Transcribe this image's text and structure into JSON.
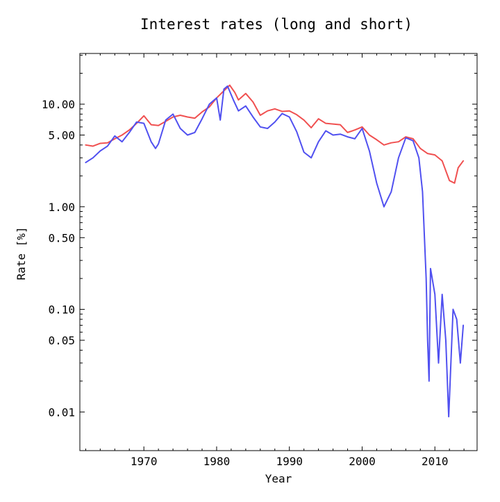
{
  "chart_data": {
    "type": "line",
    "title": "Interest rates (long and short)",
    "xlabel": "Year",
    "ylabel": "Rate [%]",
    "xlim": [
      1961.2,
      2015.8
    ],
    "ylim": [
      0.0042,
      31.2
    ],
    "yscale": "log",
    "grid": false,
    "legend": "none",
    "x_ticks": [
      1970,
      1980,
      1990,
      2000,
      2010
    ],
    "x_tick_labels": [
      "1970",
      "1980",
      "1990",
      "2000",
      "2010"
    ],
    "y_ticks": [
      10,
      5,
      1,
      0.5,
      0.1,
      0.05,
      0.01
    ],
    "y_tick_labels": [
      "10.00",
      "5.00",
      "1.00",
      "0.50",
      "0.10",
      "0.05",
      "0.01"
    ],
    "series": [
      {
        "color": "#f05050",
        "points": [
          [
            1962.0,
            4.0
          ],
          [
            1963.0,
            3.9
          ],
          [
            1964.0,
            4.15
          ],
          [
            1965.0,
            4.2
          ],
          [
            1966.0,
            4.6
          ],
          [
            1967.0,
            5.0
          ],
          [
            1968.0,
            5.6
          ],
          [
            1969.0,
            6.5
          ],
          [
            1970.0,
            7.7
          ],
          [
            1971.0,
            6.3
          ],
          [
            1972.0,
            6.2
          ],
          [
            1973.0,
            6.8
          ],
          [
            1974.0,
            7.5
          ],
          [
            1975.0,
            7.8
          ],
          [
            1976.0,
            7.5
          ],
          [
            1977.0,
            7.3
          ],
          [
            1978.0,
            8.4
          ],
          [
            1979.0,
            9.4
          ],
          [
            1980.0,
            11.5
          ],
          [
            1981.0,
            13.5
          ],
          [
            1981.8,
            15.3
          ],
          [
            1982.5,
            13.0
          ],
          [
            1983.0,
            11.0
          ],
          [
            1984.0,
            12.7
          ],
          [
            1985.0,
            10.5
          ],
          [
            1986.0,
            7.8
          ],
          [
            1987.0,
            8.6
          ],
          [
            1988.0,
            9.0
          ],
          [
            1989.0,
            8.5
          ],
          [
            1990.0,
            8.6
          ],
          [
            1991.0,
            7.9
          ],
          [
            1992.0,
            7.0
          ],
          [
            1993.0,
            5.9
          ],
          [
            1994.0,
            7.2
          ],
          [
            1995.0,
            6.5
          ],
          [
            1996.0,
            6.4
          ],
          [
            1997.0,
            6.3
          ],
          [
            1998.0,
            5.3
          ],
          [
            1999.0,
            5.6
          ],
          [
            2000.0,
            6.0
          ],
          [
            2001.0,
            5.0
          ],
          [
            2002.0,
            4.5
          ],
          [
            2003.0,
            4.0
          ],
          [
            2004.0,
            4.2
          ],
          [
            2005.0,
            4.3
          ],
          [
            2006.0,
            4.8
          ],
          [
            2007.0,
            4.6
          ],
          [
            2008.0,
            3.7
          ],
          [
            2009.0,
            3.3
          ],
          [
            2010.0,
            3.2
          ],
          [
            2011.0,
            2.8
          ],
          [
            2012.0,
            1.8
          ],
          [
            2012.7,
            1.7
          ],
          [
            2013.2,
            2.4
          ],
          [
            2013.9,
            2.8
          ]
        ]
      },
      {
        "color": "#5050f0",
        "points": [
          [
            1962.0,
            2.7
          ],
          [
            1963.0,
            3.0
          ],
          [
            1964.0,
            3.5
          ],
          [
            1965.0,
            3.9
          ],
          [
            1966.0,
            4.9
          ],
          [
            1967.0,
            4.3
          ],
          [
            1968.0,
            5.3
          ],
          [
            1969.0,
            6.7
          ],
          [
            1970.0,
            6.5
          ],
          [
            1971.0,
            4.3
          ],
          [
            1971.6,
            3.7
          ],
          [
            1972.0,
            4.1
          ],
          [
            1973.0,
            7.0
          ],
          [
            1974.0,
            8.0
          ],
          [
            1975.0,
            5.8
          ],
          [
            1976.0,
            5.0
          ],
          [
            1977.0,
            5.3
          ],
          [
            1978.0,
            7.2
          ],
          [
            1979.0,
            10.0
          ],
          [
            1980.0,
            11.5
          ],
          [
            1980.5,
            7.0
          ],
          [
            1981.0,
            14.0
          ],
          [
            1981.5,
            15.0
          ],
          [
            1982.3,
            11.0
          ],
          [
            1983.0,
            8.6
          ],
          [
            1984.0,
            9.6
          ],
          [
            1985.0,
            7.5
          ],
          [
            1986.0,
            6.0
          ],
          [
            1987.0,
            5.8
          ],
          [
            1988.0,
            6.7
          ],
          [
            1989.0,
            8.1
          ],
          [
            1990.0,
            7.5
          ],
          [
            1991.0,
            5.4
          ],
          [
            1992.0,
            3.4
          ],
          [
            1993.0,
            3.0
          ],
          [
            1994.0,
            4.3
          ],
          [
            1995.0,
            5.5
          ],
          [
            1996.0,
            5.0
          ],
          [
            1997.0,
            5.1
          ],
          [
            1998.0,
            4.8
          ],
          [
            1999.0,
            4.6
          ],
          [
            2000.0,
            5.8
          ],
          [
            2001.0,
            3.5
          ],
          [
            2002.0,
            1.7
          ],
          [
            2003.0,
            1.0
          ],
          [
            2004.0,
            1.4
          ],
          [
            2005.0,
            3.0
          ],
          [
            2006.0,
            4.7
          ],
          [
            2007.0,
            4.4
          ],
          [
            2007.8,
            3.0
          ],
          [
            2008.3,
            1.4
          ],
          [
            2008.8,
            0.2
          ],
          [
            2009.0,
            0.05
          ],
          [
            2009.2,
            0.02
          ],
          [
            2009.4,
            0.25
          ],
          [
            2010.0,
            0.14
          ],
          [
            2010.5,
            0.03
          ],
          [
            2011.0,
            0.14
          ],
          [
            2011.5,
            0.05
          ],
          [
            2011.9,
            0.009
          ],
          [
            2012.5,
            0.1
          ],
          [
            2013.0,
            0.08
          ],
          [
            2013.5,
            0.03
          ],
          [
            2013.9,
            0.07
          ]
        ]
      }
    ]
  }
}
